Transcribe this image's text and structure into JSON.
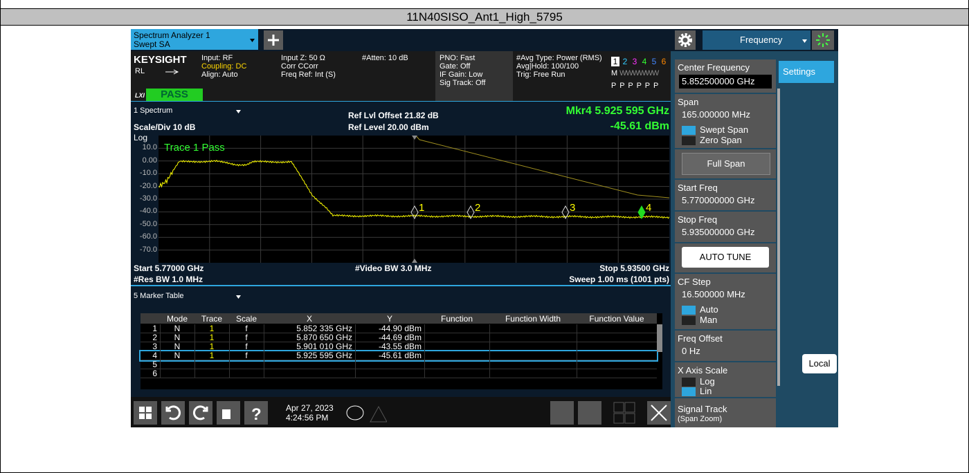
{
  "title": "11N40SISO_Ant1_High_5795",
  "top_bar": {
    "tab_line1": "Spectrum Analyzer 1",
    "tab_line2": "Swept SA",
    "menu": "Frequency"
  },
  "status": {
    "brand": "KEYSIGHT",
    "rl": "RL",
    "lxi": "LXI",
    "pass": "PASS",
    "col1": [
      "Input: RF",
      "Coupling: DC",
      "Align: Auto"
    ],
    "col2": [
      "Input Z: 50 Ω",
      "Corr CCorr",
      "Freq Ref: Int (S)"
    ],
    "col3": [
      "#Atten: 10 dB"
    ],
    "col4": [
      "PNO: Fast",
      "Gate: Off",
      "IF Gain: Low",
      "Sig Track: Off"
    ],
    "col5": [
      "#Avg Type: Power (RMS)",
      "Avg|Hold: 100/100",
      "Trig: Free Run"
    ],
    "traces": [
      "1",
      "2",
      "3",
      "4",
      "5",
      "6"
    ],
    "trace_mode": "M",
    "trace_types": "WWWWWW",
    "trace_detectors": "P P P P P P"
  },
  "plot": {
    "window": "1 Spectrum",
    "scale_div": "Scale/Div 10 dB",
    "scale_type": "Log",
    "ref_offset": "Ref Lvl Offset 21.82 dB",
    "ref_level": "Ref Level 20.00 dBm",
    "marker_freq": "Mkr4  5.925 595 GHz",
    "marker_level": "-45.61 dBm",
    "trace_status": "Trace 1 Pass",
    "y_labels": [
      "10.0",
      "0.00",
      "-10.0",
      "-20.0",
      "-30.0",
      "-40.0",
      "-50.0",
      "-60.0",
      "-70.0"
    ],
    "markers": [
      "1",
      "2",
      "3",
      "4"
    ],
    "start": "Start 5.77000 GHz",
    "res_bw": "#Res BW 1.0 MHz",
    "video_bw": "#Video BW 3.0 MHz",
    "stop": "Stop 5.93500 GHz",
    "sweep": "Sweep 1.00 ms (1001 pts)"
  },
  "marker_table": {
    "title": "5 Marker Table",
    "columns": [
      "Mode",
      "Trace",
      "Scale",
      "X",
      "Y",
      "Function",
      "Function Width",
      "Function Value"
    ],
    "rows": [
      [
        "1",
        "N",
        "1",
        "f",
        "5.852 335 GHz",
        "-44.90 dBm"
      ],
      [
        "2",
        "N",
        "1",
        "f",
        "5.870 650 GHz",
        "-44.69 dBm"
      ],
      [
        "3",
        "N",
        "1",
        "f",
        "5.901 010 GHz",
        "-43.55 dBm"
      ],
      [
        "4",
        "N",
        "1",
        "f",
        "5.925 595 GHz",
        "-45.61 dBm"
      ],
      [
        "5"
      ],
      [
        "6"
      ]
    ]
  },
  "bottom_bar": {
    "date": "Apr 27, 2023",
    "time": "4:24:56 PM"
  },
  "panel": {
    "settings": "Settings",
    "local": "Local",
    "center_label": "Center Frequency",
    "center_value": "5.852500000 GHz",
    "span_label": "Span",
    "span_value": "165.000000 MHz",
    "swept_span": "Swept Span",
    "zero_span": "Zero Span",
    "full_span": "Full Span",
    "start_label": "Start Freq",
    "start_value": "5.770000000 GHz",
    "stop_label": "Stop Freq",
    "stop_value": "5.935000000 GHz",
    "auto_tune": "AUTO TUNE",
    "cf_label": "CF Step",
    "cf_value": "16.500000 MHz",
    "auto": "Auto",
    "man": "Man",
    "offset_label": "Freq Offset",
    "offset_value": "0 Hz",
    "xscale_label": "X Axis Scale",
    "log": "Log",
    "lin": "Lin",
    "track_label": "Signal Track",
    "track_sub": "(Span Zoom)"
  }
}
